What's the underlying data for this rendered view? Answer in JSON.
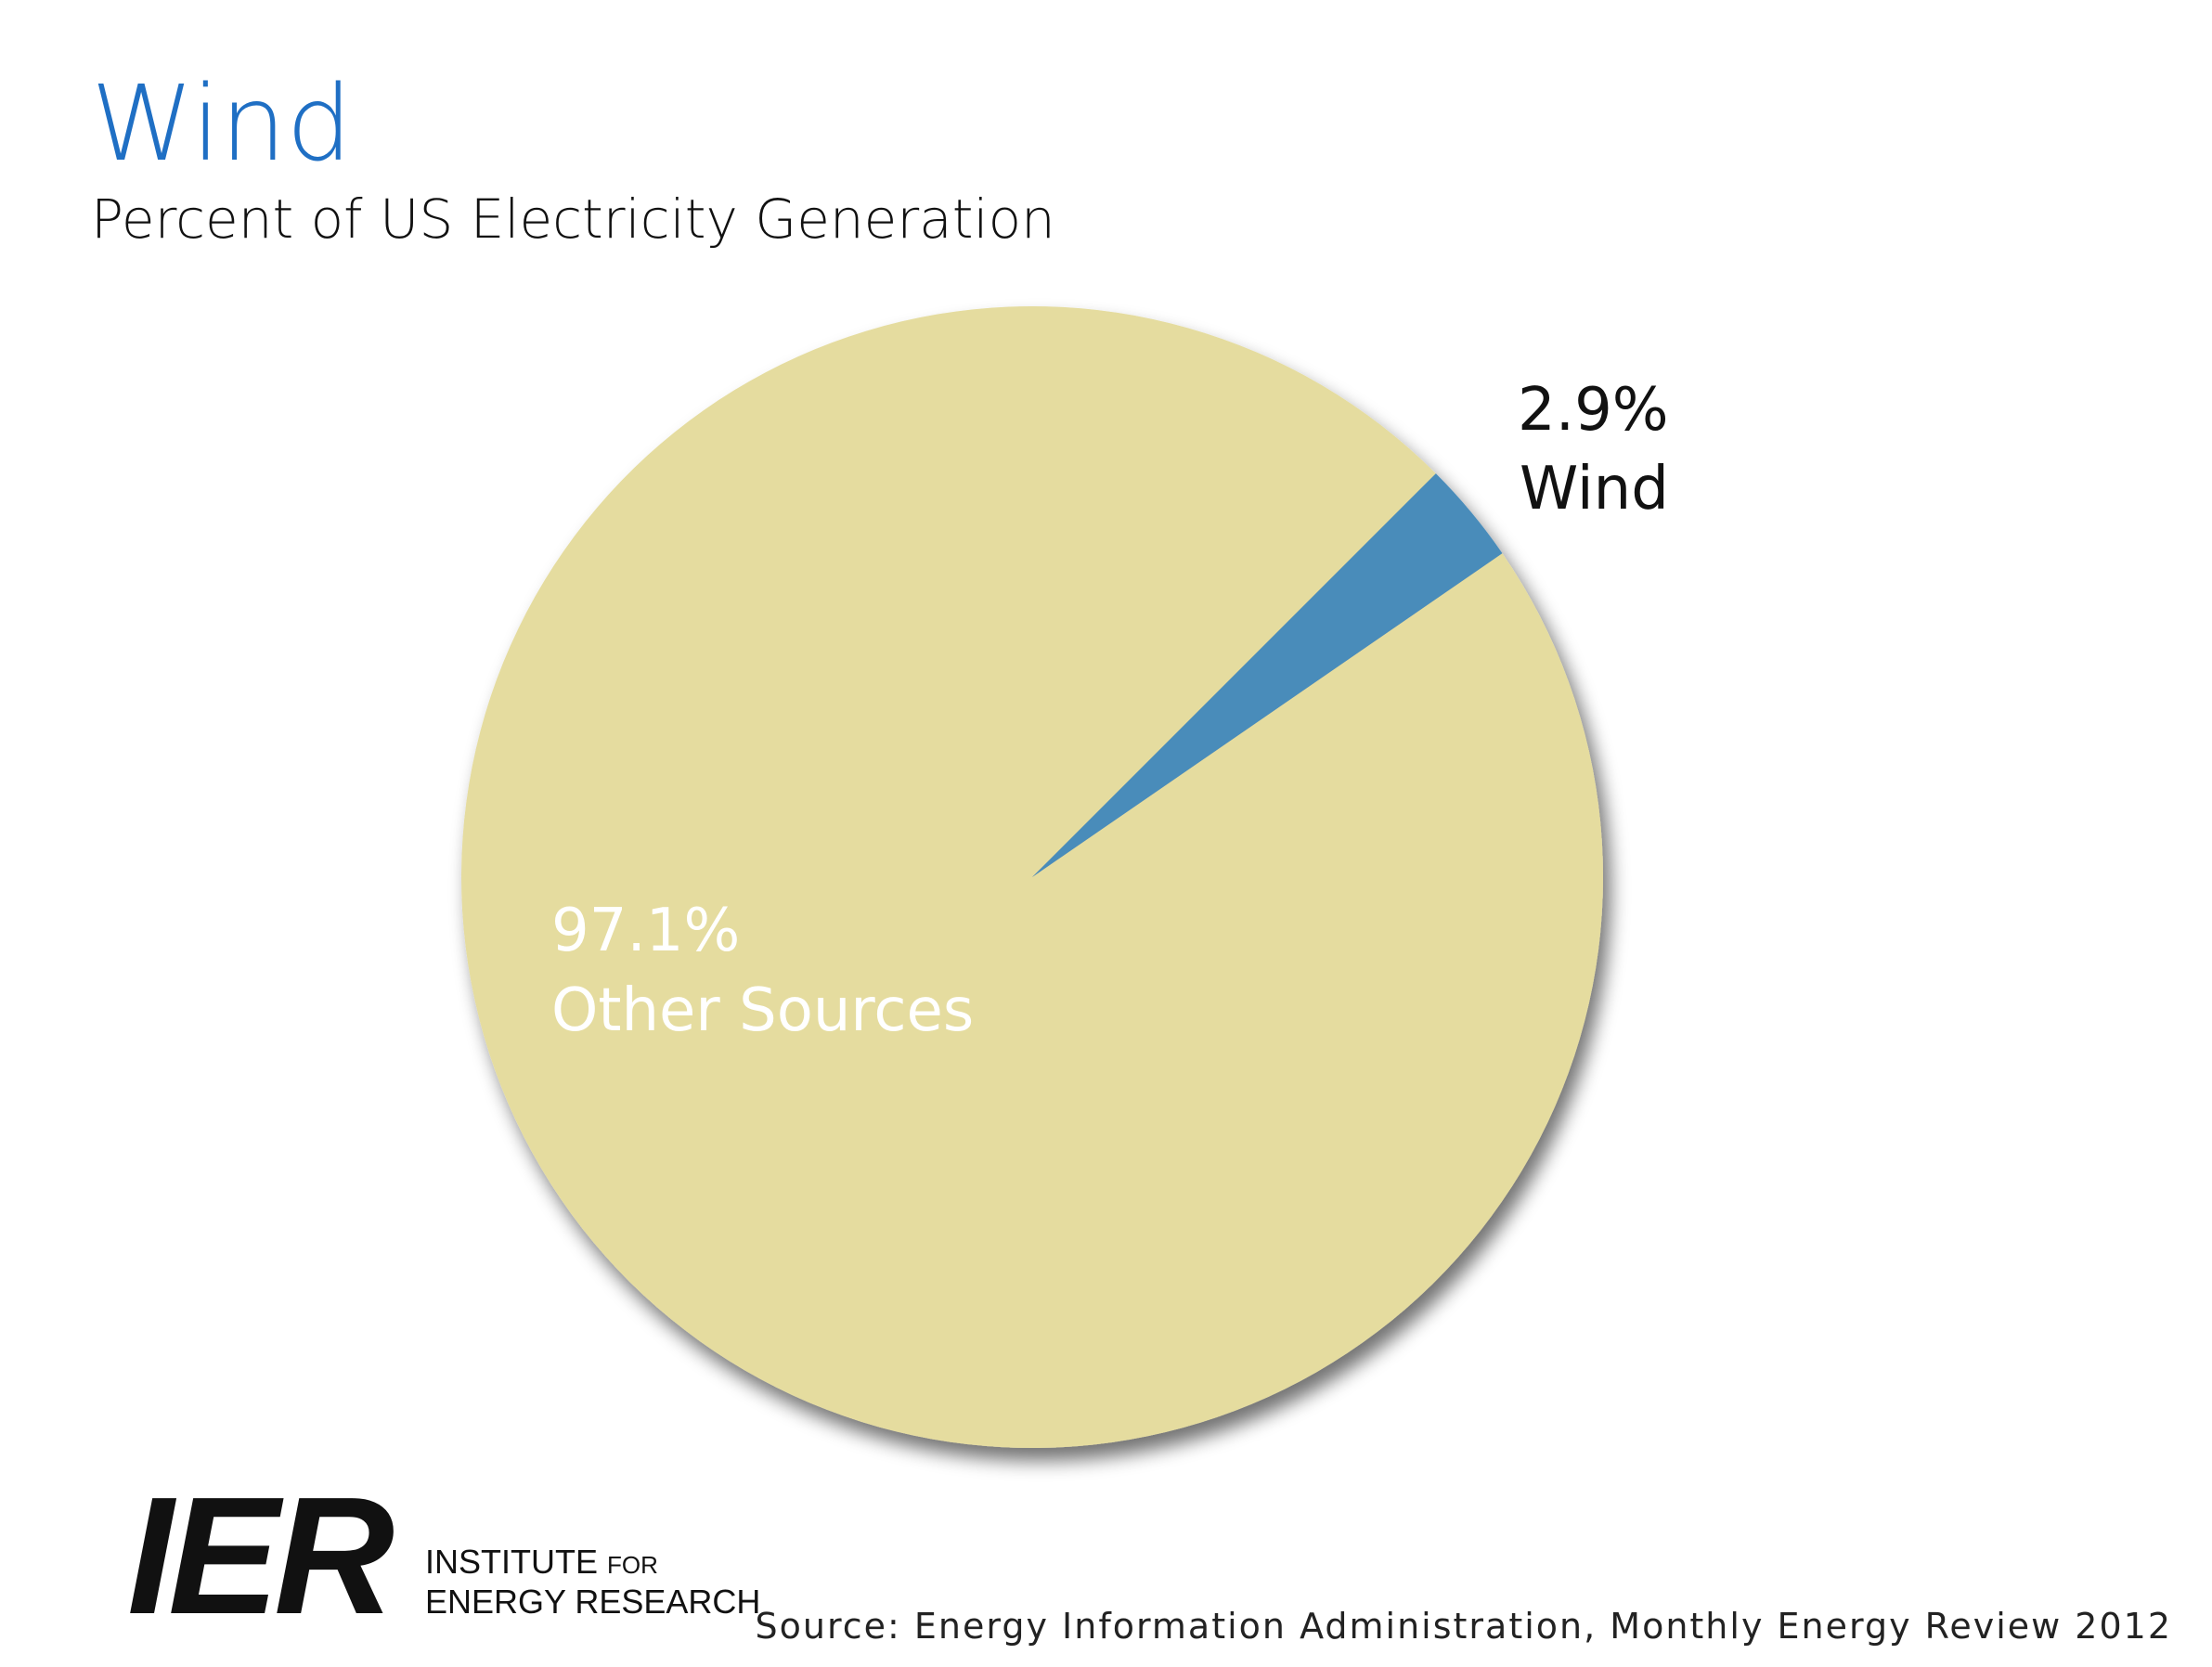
{
  "chart_data": {
    "type": "pie",
    "title": "Wind",
    "subtitle": "Percent of US Electricity Generation",
    "categories": [
      "Other Sources",
      "Wind"
    ],
    "values": [
      97.1,
      2.9
    ],
    "value_labels": [
      "97.1%",
      "2.9%"
    ],
    "colors": [
      "#e5dc9f",
      "#4a8cba"
    ],
    "start_angle": 45,
    "source": "Source: Energy Information Administration, Monthly Energy Review 2012"
  },
  "logo": {
    "mark": "IER",
    "line1": "INSTITUTE",
    "line1_small": "FOR",
    "line2": "ENERGY RESEARCH"
  }
}
